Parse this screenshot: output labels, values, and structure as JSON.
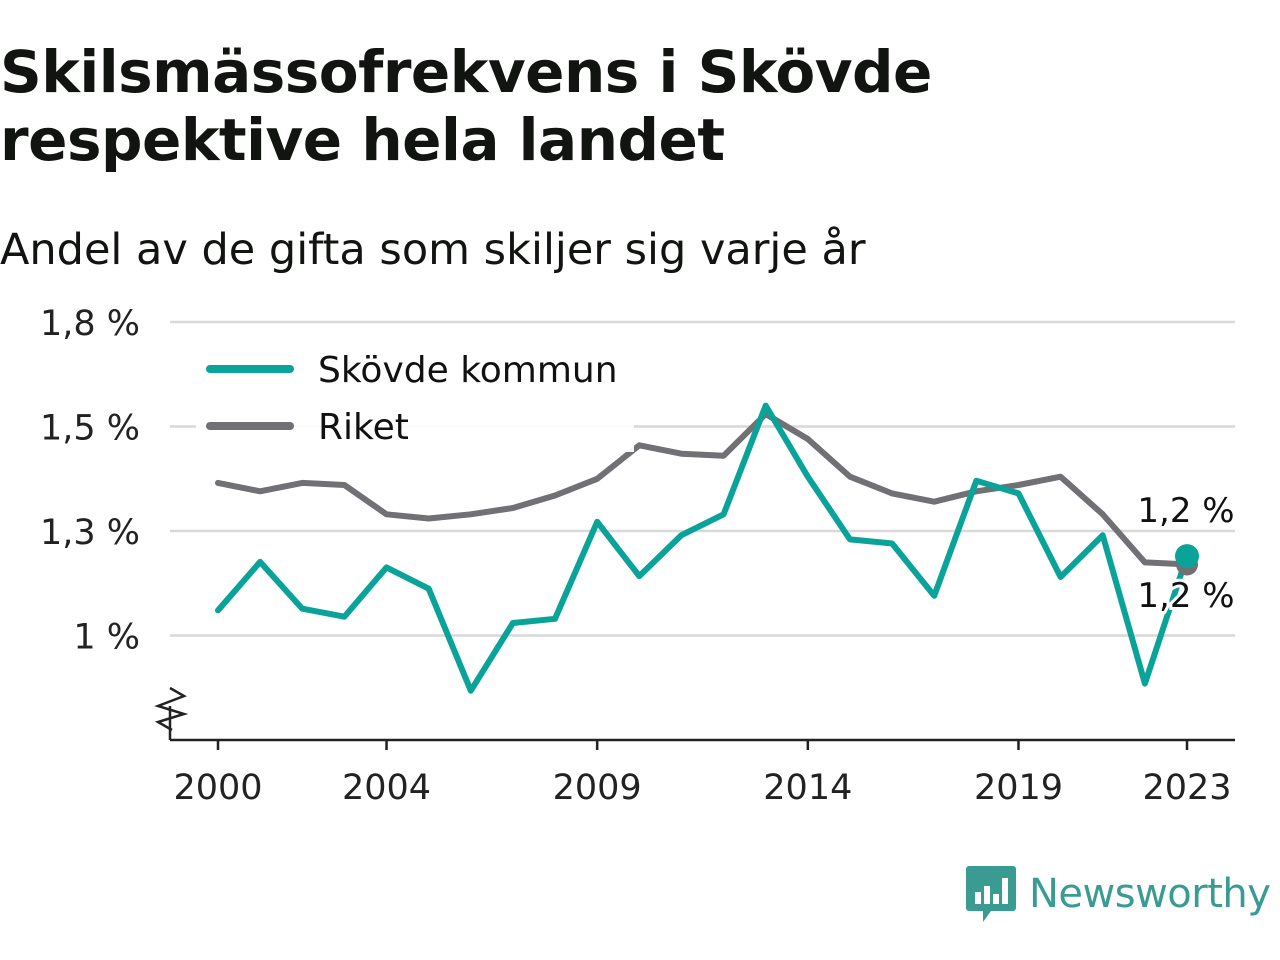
{
  "chart_data": {
    "type": "line",
    "title": "Skilsmässofrekvens i Skövde respektive hela landet",
    "subtitle": "Andel av de gifta som skiljer sig varje år",
    "x": [
      2000,
      2001,
      2002,
      2003,
      2004,
      2005,
      2006,
      2007,
      2008,
      2009,
      2010,
      2011,
      2012,
      2013,
      2014,
      2015,
      2016,
      2017,
      2018,
      2019,
      2020,
      2021,
      2022,
      2023
    ],
    "x_ticks": [
      2000,
      2004,
      2009,
      2014,
      2019,
      2023
    ],
    "y_ticks": [
      {
        "value": 1.0,
        "label": "1 %"
      },
      {
        "value": 1.25,
        "label": "1,3 %"
      },
      {
        "value": 1.5,
        "label": "1,5 %"
      },
      {
        "value": 1.75,
        "label": "1,8 %"
      }
    ],
    "ylim": [
      0.75,
      1.75
    ],
    "y_axis_break": true,
    "grid": true,
    "legend_position": "top-left",
    "series": [
      {
        "name": "Skövde kommun",
        "color": "#0aa39a",
        "values": [
          1.06,
          1.176,
          1.064,
          1.045,
          1.163,
          1.112,
          0.868,
          1.03,
          1.04,
          1.272,
          1.142,
          1.24,
          1.29,
          1.55,
          1.38,
          1.23,
          1.22,
          1.095,
          1.37,
          1.34,
          1.14,
          1.24,
          0.885,
          1.19
        ],
        "end_label": "1,2 %"
      },
      {
        "name": "Riket",
        "color": "#707075",
        "values": [
          1.365,
          1.345,
          1.365,
          1.36,
          1.29,
          1.28,
          1.29,
          1.305,
          1.335,
          1.375,
          1.455,
          1.435,
          1.43,
          1.53,
          1.47,
          1.38,
          1.34,
          1.32,
          1.345,
          1.36,
          1.38,
          1.29,
          1.175,
          1.17
        ],
        "end_label": "1,2 %"
      }
    ]
  },
  "branding": {
    "logo_text": "Newsworthy",
    "logo_icon": "bar-chart-speech-bubble-icon",
    "color": "#3a9b92"
  }
}
